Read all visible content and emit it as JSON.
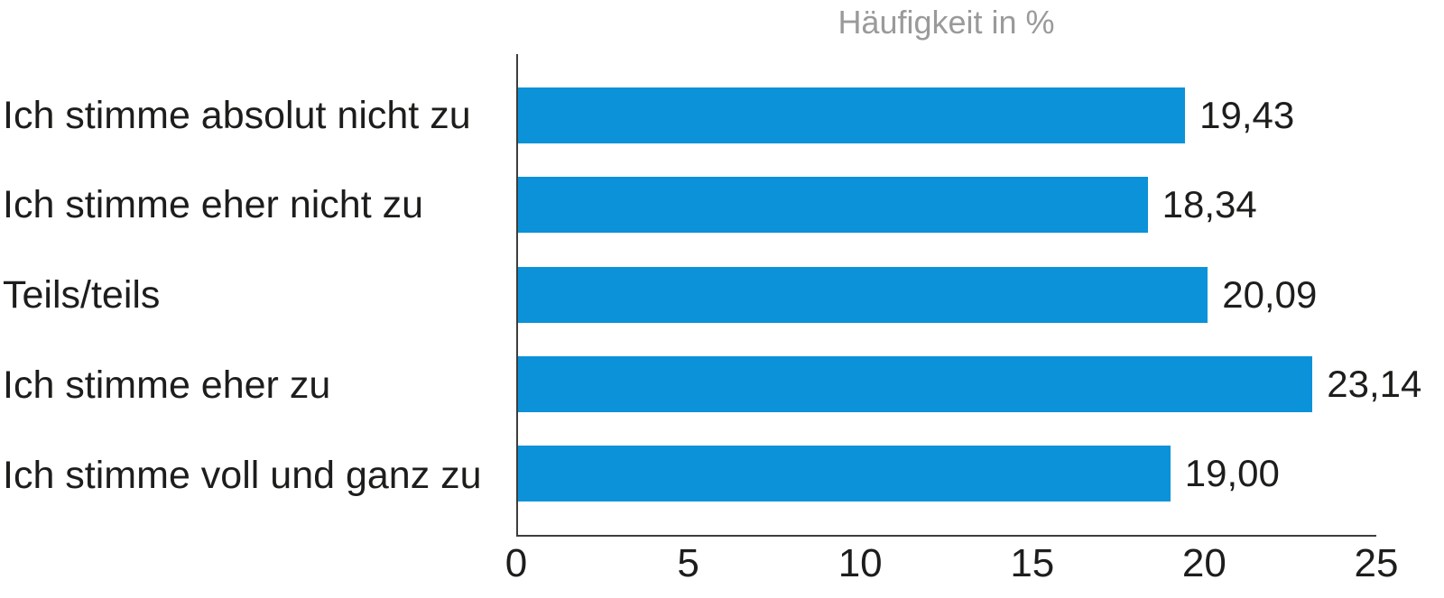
{
  "chart_data": {
    "type": "bar",
    "orientation": "horizontal",
    "title": "Häufigkeit in %",
    "categories": [
      "Ich stimme absolut nicht zu",
      "Ich stimme eher nicht zu",
      "Teils/teils",
      "Ich stimme eher zu",
      "Ich stimme voll und ganz zu"
    ],
    "values": [
      19.43,
      18.34,
      20.09,
      23.14,
      19.0
    ],
    "value_labels": [
      "19,43",
      "18,34",
      "20,09",
      "23,14",
      "19,00"
    ],
    "xlabel": "",
    "ylabel": "",
    "xlim": [
      0,
      25
    ],
    "x_ticks": [
      0,
      5,
      10,
      15,
      20,
      25
    ],
    "grid": false,
    "legend": false,
    "bar_color": "#0b92d8",
    "axis_color": "#3d3d3c",
    "label_color": "#1d1d1b",
    "title_color": "#9a9a9a"
  }
}
